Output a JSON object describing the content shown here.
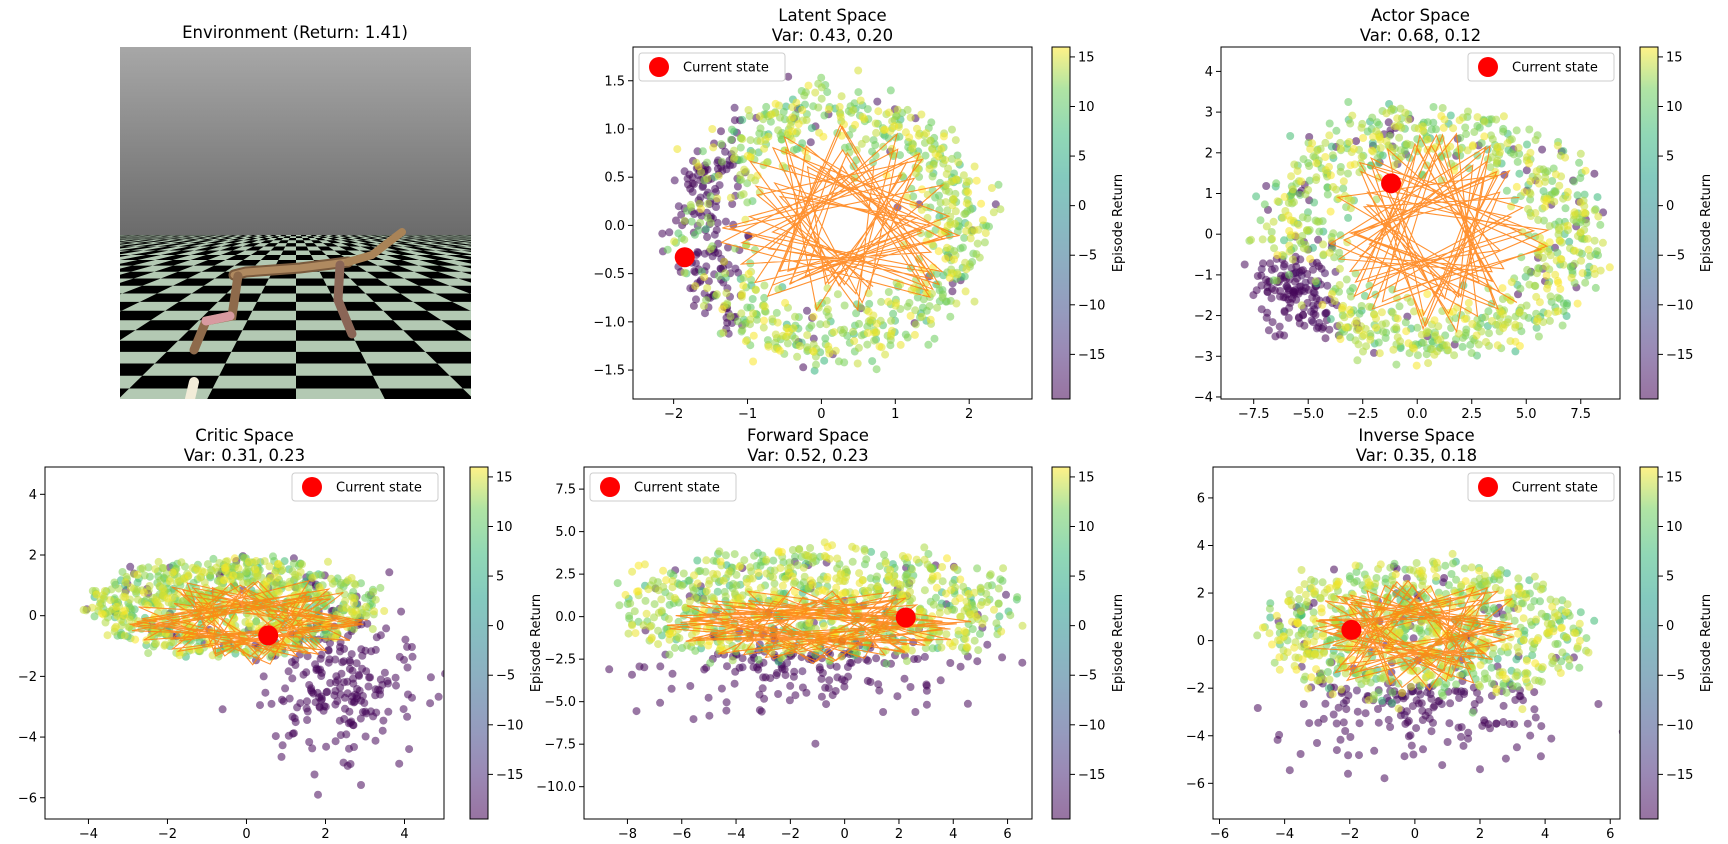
{
  "figure": {
    "env_title": "Environment (Return: 1.41)",
    "colorbar_label": "Episode Return",
    "colorbar_range": [
      -19.5,
      16
    ],
    "colorbar_ticks": [
      15,
      10,
      5,
      0,
      -5,
      -10,
      -15
    ],
    "colormap": "viridis",
    "marker_color": "#ff0000",
    "trajectory_color": "#ff7f0e"
  },
  "chart_data": [
    {
      "type": "scatter",
      "id": "latent",
      "title": "Latent Space",
      "subtitle": "Var: 0.43, 0.20",
      "xlim": [
        -2.55,
        2.85
      ],
      "ylim": [
        -1.8,
        1.85
      ],
      "xticks": [
        -2,
        -1,
        0,
        1,
        2
      ],
      "yticks": [
        -1.5,
        -1.0,
        -0.5,
        0.0,
        0.5,
        1.0,
        1.5
      ],
      "current_state": [
        -1.85,
        -0.33
      ],
      "legend": "Current state",
      "legend_loc": "upper left",
      "cloud": {
        "shape": "diamond",
        "cx": 0.1,
        "cy": 0.0,
        "rx": 2.0,
        "ry": 1.35,
        "purple_side": "left"
      },
      "trajectory": {
        "cx": 0.3,
        "cy": 0.0,
        "rx": 1.6,
        "ry": 1.0
      }
    },
    {
      "type": "scatter",
      "id": "actor",
      "title": "Actor Space",
      "subtitle": "Var: 0.68, 0.12",
      "xlim": [
        -9.0,
        9.3
      ],
      "ylim": [
        -4.05,
        4.6
      ],
      "xticks": [
        -7.5,
        -5.0,
        -2.5,
        0.0,
        2.5,
        5.0,
        7.5
      ],
      "yticks": [
        -4,
        -3,
        -2,
        -1,
        0,
        1,
        2,
        3,
        4
      ],
      "current_state": [
        -1.2,
        1.25
      ],
      "legend": "Current state",
      "legend_loc": "upper right",
      "cloud": {
        "shape": "ring",
        "cx": 0.5,
        "cy": 0.0,
        "rx": 7.5,
        "ry": 3.0,
        "purple_side": "lower-left"
      },
      "trajectory": {
        "cx": 0.8,
        "cy": 0.0,
        "rx": 5.0,
        "ry": 2.4
      }
    },
    {
      "type": "scatter",
      "id": "critic",
      "title": "Critic Space",
      "subtitle": "Var: 0.31, 0.23",
      "xlim": [
        -5.1,
        5.0
      ],
      "ylim": [
        -6.7,
        4.9
      ],
      "xticks": [
        -4,
        -2,
        0,
        2,
        4
      ],
      "yticks": [
        -6,
        -4,
        -2,
        0,
        2,
        4
      ],
      "current_state": [
        0.55,
        -0.65
      ],
      "legend": "Current state",
      "legend_loc": "upper right",
      "cloud": {
        "shape": "band",
        "cx": -0.3,
        "cy": 0.3,
        "rx": 3.5,
        "ry": 1.6,
        "purple_side": "lower-right"
      },
      "trajectory": {
        "cx": 0.0,
        "cy": -0.2,
        "rx": 3.0,
        "ry": 1.5
      }
    },
    {
      "type": "scatter",
      "id": "forward",
      "title": "Forward Space",
      "subtitle": "Var: 0.52, 0.23",
      "xlim": [
        -9.6,
        6.9
      ],
      "ylim": [
        -11.9,
        8.8
      ],
      "xticks": [
        -8,
        -6,
        -4,
        -2,
        0,
        2,
        4,
        6
      ],
      "yticks": [
        -10.0,
        -7.5,
        -5.0,
        -2.5,
        0.0,
        2.5,
        5.0,
        7.5
      ],
      "current_state": [
        2.25,
        -0.05
      ],
      "legend": "Current state",
      "legend_loc": "upper left",
      "cloud": {
        "shape": "band",
        "cx": -1.0,
        "cy": 0.5,
        "rx": 7.0,
        "ry": 3.5,
        "purple_side": "bottom"
      },
      "trajectory": {
        "cx": -1.0,
        "cy": -0.5,
        "rx": 5.5,
        "ry": 2.2
      }
    },
    {
      "type": "scatter",
      "id": "inverse",
      "title": "Inverse Space",
      "subtitle": "Var: 0.35, 0.18",
      "xlim": [
        -6.2,
        6.3
      ],
      "ylim": [
        -7.5,
        7.3
      ],
      "xticks": [
        -6,
        -4,
        -2,
        0,
        2,
        4,
        6
      ],
      "yticks": [
        -6,
        -4,
        -2,
        0,
        2,
        4,
        6
      ],
      "current_state": [
        -1.95,
        0.45
      ],
      "legend": "Current state",
      "legend_loc": "upper right",
      "cloud": {
        "shape": "band",
        "cx": 0.3,
        "cy": 0.3,
        "rx": 4.8,
        "ry": 3.0,
        "purple_side": "bottom"
      },
      "trajectory": {
        "cx": 0.0,
        "cy": 0.3,
        "rx": 3.6,
        "ry": 2.3
      }
    }
  ]
}
